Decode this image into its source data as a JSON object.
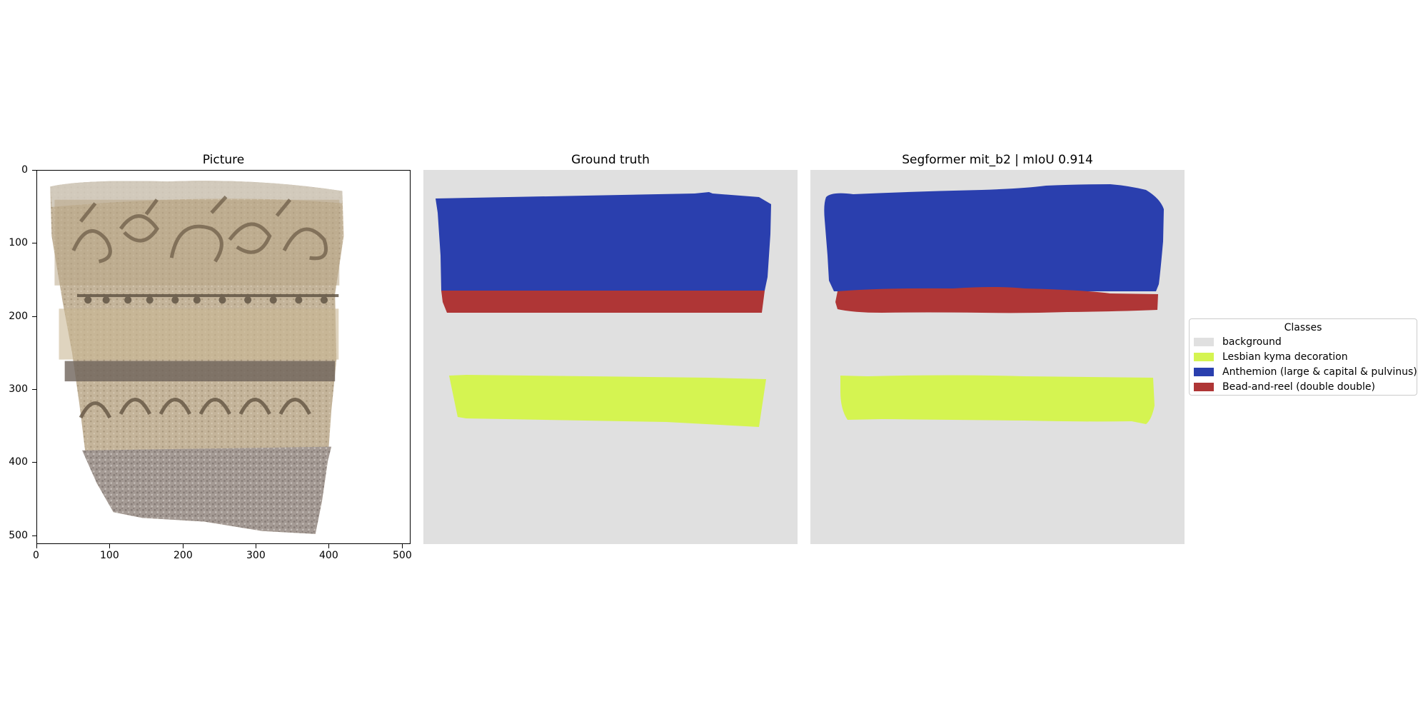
{
  "panels": {
    "picture": {
      "title": "Picture"
    },
    "ground_truth": {
      "title": "Ground truth"
    },
    "prediction": {
      "title": "Segformer mit_b2 | mIoU 0.914"
    }
  },
  "axes": {
    "x_ticks": [
      "0",
      "100",
      "200",
      "300",
      "400",
      "500"
    ],
    "y_ticks": [
      "0",
      "100",
      "200",
      "300",
      "400",
      "500"
    ]
  },
  "legend": {
    "title": "Classes",
    "items": [
      {
        "label": "background",
        "color": "#e0e0e0"
      },
      {
        "label": "Lesbian kyma decoration",
        "color": "#d5f451"
      },
      {
        "label": "Anthemion (large & capital & pulvinus)",
        "color": "#2a3fae"
      },
      {
        "label": "Bead-and-reel (double double)",
        "color": "#af3636"
      }
    ]
  }
}
